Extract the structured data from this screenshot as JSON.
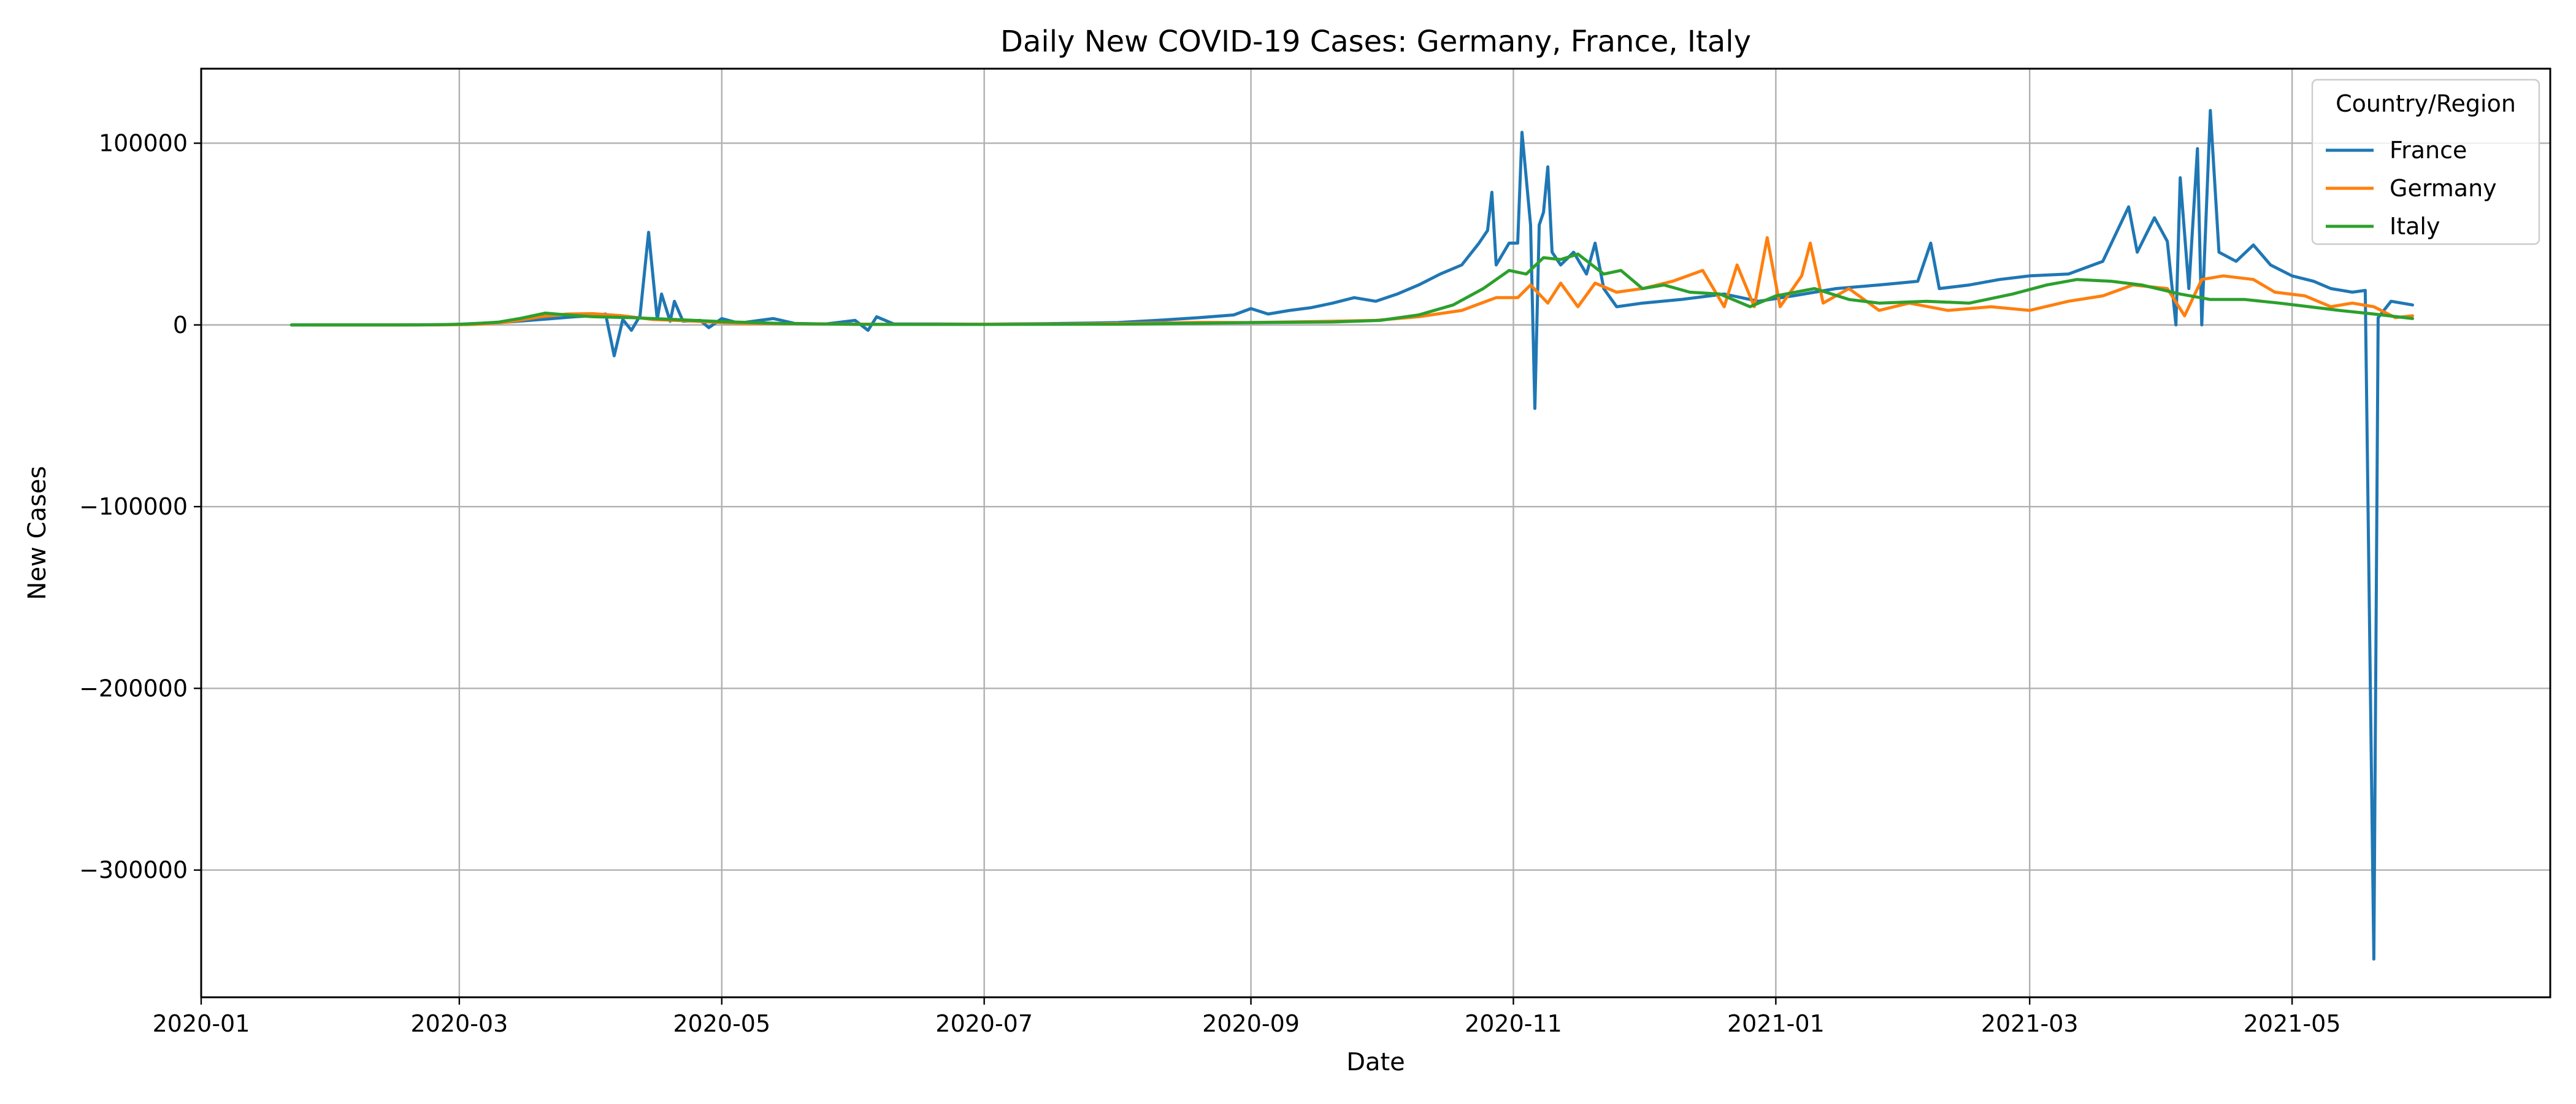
{
  "chart_data": {
    "type": "line",
    "title": "Daily New COVID-19 Cases: Germany, France, Italy",
    "xlabel": "Date",
    "ylabel": "New Cases",
    "x_axis_type": "date",
    "xlim": [
      "2020-01-01",
      "2021-06-30"
    ],
    "ylim": [
      -370000,
      141000
    ],
    "grid": true,
    "legend": {
      "title": "Country/Region",
      "placement": "top-right"
    },
    "x_ticks": [
      "2020-01",
      "2020-03",
      "2020-05",
      "2020-07",
      "2020-09",
      "2020-11",
      "2021-01",
      "2021-03",
      "2021-05"
    ],
    "y_ticks": [
      100000,
      0,
      -100000,
      -200000,
      -300000
    ],
    "y_tick_labels": [
      "100000",
      "0",
      "−100000",
      "−200000",
      "−300000"
    ],
    "series": [
      {
        "name": "France",
        "color": "#1f77b4",
        "points": [
          [
            "2020-01-22",
            0
          ],
          [
            "2020-02-15",
            0
          ],
          [
            "2020-02-28",
            200
          ],
          [
            "2020-03-05",
            800
          ],
          [
            "2020-03-12",
            1500
          ],
          [
            "2020-03-20",
            3000
          ],
          [
            "2020-03-28",
            4500
          ],
          [
            "2020-04-01",
            5000
          ],
          [
            "2020-04-04",
            6000
          ],
          [
            "2020-04-06",
            -17000
          ],
          [
            "2020-04-08",
            3000
          ],
          [
            "2020-04-10",
            -3000
          ],
          [
            "2020-04-12",
            5000
          ],
          [
            "2020-04-14",
            51000
          ],
          [
            "2020-04-16",
            3000
          ],
          [
            "2020-04-17",
            17000
          ],
          [
            "2020-04-19",
            2000
          ],
          [
            "2020-04-20",
            13000
          ],
          [
            "2020-04-22",
            2000
          ],
          [
            "2020-04-26",
            2500
          ],
          [
            "2020-04-28",
            -1500
          ],
          [
            "2020-05-01",
            3500
          ],
          [
            "2020-05-05",
            1000
          ],
          [
            "2020-05-13",
            3500
          ],
          [
            "2020-05-18",
            800
          ],
          [
            "2020-05-25",
            500
          ],
          [
            "2020-06-01",
            2500
          ],
          [
            "2020-06-04",
            -3000
          ],
          [
            "2020-06-06",
            4500
          ],
          [
            "2020-06-10",
            500
          ],
          [
            "2020-06-20",
            500
          ],
          [
            "2020-07-01",
            400
          ],
          [
            "2020-07-15",
            700
          ],
          [
            "2020-07-25",
            1000
          ],
          [
            "2020-08-01",
            1300
          ],
          [
            "2020-08-10",
            2500
          ],
          [
            "2020-08-20",
            4000
          ],
          [
            "2020-08-28",
            5500
          ],
          [
            "2020-09-01",
            9000
          ],
          [
            "2020-09-05",
            6000
          ],
          [
            "2020-09-10",
            8000
          ],
          [
            "2020-09-15",
            9500
          ],
          [
            "2020-09-20",
            12000
          ],
          [
            "2020-09-25",
            15000
          ],
          [
            "2020-09-30",
            13000
          ],
          [
            "2020-10-05",
            17000
          ],
          [
            "2020-10-10",
            22000
          ],
          [
            "2020-10-15",
            28000
          ],
          [
            "2020-10-20",
            33000
          ],
          [
            "2020-10-24",
            45000
          ],
          [
            "2020-10-26",
            52000
          ],
          [
            "2020-10-27",
            73000
          ],
          [
            "2020-10-28",
            33000
          ],
          [
            "2020-10-31",
            45000
          ],
          [
            "2020-11-02",
            45000
          ],
          [
            "2020-11-03",
            106000
          ],
          [
            "2020-11-05",
            55000
          ],
          [
            "2020-11-06",
            -46000
          ],
          [
            "2020-11-07",
            55000
          ],
          [
            "2020-11-08",
            62000
          ],
          [
            "2020-11-09",
            87000
          ],
          [
            "2020-11-10",
            40000
          ],
          [
            "2020-11-12",
            33000
          ],
          [
            "2020-11-15",
            40000
          ],
          [
            "2020-11-18",
            28000
          ],
          [
            "2020-11-20",
            45000
          ],
          [
            "2020-11-22",
            20000
          ],
          [
            "2020-11-25",
            10000
          ],
          [
            "2020-12-01",
            12000
          ],
          [
            "2020-12-10",
            14000
          ],
          [
            "2020-12-20",
            17000
          ],
          [
            "2020-12-28",
            13000
          ],
          [
            "2021-01-05",
            16000
          ],
          [
            "2021-01-15",
            20000
          ],
          [
            "2021-01-25",
            22000
          ],
          [
            "2021-02-03",
            24000
          ],
          [
            "2021-02-06",
            45000
          ],
          [
            "2021-02-08",
            20000
          ],
          [
            "2021-02-15",
            22000
          ],
          [
            "2021-02-22",
            25000
          ],
          [
            "2021-03-01",
            27000
          ],
          [
            "2021-03-10",
            28000
          ],
          [
            "2021-03-18",
            35000
          ],
          [
            "2021-03-24",
            65000
          ],
          [
            "2021-03-26",
            40000
          ],
          [
            "2021-03-30",
            59000
          ],
          [
            "2021-04-02",
            46000
          ],
          [
            "2021-04-04",
            0
          ],
          [
            "2021-04-05",
            81000
          ],
          [
            "2021-04-07",
            20000
          ],
          [
            "2021-04-09",
            97000
          ],
          [
            "2021-04-10",
            0
          ],
          [
            "2021-04-12",
            118000
          ],
          [
            "2021-04-14",
            40000
          ],
          [
            "2021-04-18",
            35000
          ],
          [
            "2021-04-22",
            44000
          ],
          [
            "2021-04-26",
            33000
          ],
          [
            "2021-05-01",
            27000
          ],
          [
            "2021-05-06",
            24000
          ],
          [
            "2021-05-10",
            20000
          ],
          [
            "2021-05-15",
            18000
          ],
          [
            "2021-05-18",
            19000
          ],
          [
            "2021-05-20",
            -349000
          ],
          [
            "2021-05-21",
            4000
          ],
          [
            "2021-05-24",
            13000
          ],
          [
            "2021-05-29",
            11000
          ]
        ]
      },
      {
        "name": "Germany",
        "color": "#ff7f0e",
        "points": [
          [
            "2020-01-27",
            0
          ],
          [
            "2020-02-25",
            0
          ],
          [
            "2020-03-05",
            300
          ],
          [
            "2020-03-12",
            1500
          ],
          [
            "2020-03-20",
            4500
          ],
          [
            "2020-03-26",
            6000
          ],
          [
            "2020-04-01",
            6200
          ],
          [
            "2020-04-08",
            5000
          ],
          [
            "2020-04-15",
            3000
          ],
          [
            "2020-04-25",
            2000
          ],
          [
            "2020-05-05",
            900
          ],
          [
            "2020-05-20",
            600
          ],
          [
            "2020-06-10",
            300
          ],
          [
            "2020-07-01",
            400
          ],
          [
            "2020-07-20",
            500
          ],
          [
            "2020-08-05",
            900
          ],
          [
            "2020-08-20",
            1400
          ],
          [
            "2020-09-01",
            1300
          ],
          [
            "2020-09-15",
            1800
          ],
          [
            "2020-09-30",
            2500
          ],
          [
            "2020-10-10",
            4500
          ],
          [
            "2020-10-20",
            8000
          ],
          [
            "2020-10-28",
            15000
          ],
          [
            "2020-11-02",
            15000
          ],
          [
            "2020-11-05",
            22000
          ],
          [
            "2020-11-09",
            12000
          ],
          [
            "2020-11-12",
            23000
          ],
          [
            "2020-11-16",
            10000
          ],
          [
            "2020-11-20",
            23000
          ],
          [
            "2020-11-25",
            18000
          ],
          [
            "2020-12-01",
            20000
          ],
          [
            "2020-12-08",
            24000
          ],
          [
            "2020-12-15",
            30000
          ],
          [
            "2020-12-20",
            10000
          ],
          [
            "2020-12-23",
            33000
          ],
          [
            "2020-12-27",
            10000
          ],
          [
            "2020-12-30",
            48000
          ],
          [
            "2021-01-02",
            10000
          ],
          [
            "2021-01-07",
            27000
          ],
          [
            "2021-01-09",
            45000
          ],
          [
            "2021-01-12",
            12000
          ],
          [
            "2021-01-18",
            20000
          ],
          [
            "2021-01-25",
            8000
          ],
          [
            "2021-02-01",
            12000
          ],
          [
            "2021-02-10",
            8000
          ],
          [
            "2021-02-20",
            10000
          ],
          [
            "2021-03-01",
            8000
          ],
          [
            "2021-03-10",
            13000
          ],
          [
            "2021-03-18",
            16000
          ],
          [
            "2021-03-25",
            22000
          ],
          [
            "2021-04-02",
            20000
          ],
          [
            "2021-04-06",
            5000
          ],
          [
            "2021-04-10",
            25000
          ],
          [
            "2021-04-15",
            27000
          ],
          [
            "2021-04-22",
            25000
          ],
          [
            "2021-04-27",
            18000
          ],
          [
            "2021-05-04",
            16000
          ],
          [
            "2021-05-10",
            10000
          ],
          [
            "2021-05-15",
            12000
          ],
          [
            "2021-05-20",
            10000
          ],
          [
            "2021-05-25",
            4000
          ],
          [
            "2021-05-29",
            5000
          ]
        ]
      },
      {
        "name": "Italy",
        "color": "#2ca02c",
        "points": [
          [
            "2020-01-22",
            0
          ],
          [
            "2020-02-20",
            0
          ],
          [
            "2020-02-26",
            200
          ],
          [
            "2020-03-03",
            500
          ],
          [
            "2020-03-10",
            1500
          ],
          [
            "2020-03-15",
            3500
          ],
          [
            "2020-03-21",
            6500
          ],
          [
            "2020-03-26",
            5500
          ],
          [
            "2020-04-01",
            4500
          ],
          [
            "2020-04-10",
            4000
          ],
          [
            "2020-04-20",
            3000
          ],
          [
            "2020-05-01",
            1800
          ],
          [
            "2020-05-15",
            800
          ],
          [
            "2020-06-01",
            300
          ],
          [
            "2020-07-01",
            250
          ],
          [
            "2020-08-01",
            400
          ],
          [
            "2020-08-20",
            900
          ],
          [
            "2020-09-01",
            1300
          ],
          [
            "2020-09-20",
            1600
          ],
          [
            "2020-10-01",
            2500
          ],
          [
            "2020-10-10",
            5500
          ],
          [
            "2020-10-18",
            11000
          ],
          [
            "2020-10-25",
            20000
          ],
          [
            "2020-10-31",
            30000
          ],
          [
            "2020-11-04",
            28000
          ],
          [
            "2020-11-08",
            37000
          ],
          [
            "2020-11-12",
            36000
          ],
          [
            "2020-11-16",
            39000
          ],
          [
            "2020-11-22",
            28000
          ],
          [
            "2020-11-26",
            30000
          ],
          [
            "2020-12-01",
            20000
          ],
          [
            "2020-12-06",
            22000
          ],
          [
            "2020-12-12",
            18000
          ],
          [
            "2020-12-19",
            17000
          ],
          [
            "2020-12-26",
            10000
          ],
          [
            "2021-01-01",
            16000
          ],
          [
            "2021-01-10",
            20000
          ],
          [
            "2021-01-18",
            14000
          ],
          [
            "2021-01-25",
            12000
          ],
          [
            "2021-02-05",
            13000
          ],
          [
            "2021-02-15",
            12000
          ],
          [
            "2021-02-25",
            17000
          ],
          [
            "2021-03-05",
            22000
          ],
          [
            "2021-03-12",
            25000
          ],
          [
            "2021-03-20",
            24000
          ],
          [
            "2021-03-27",
            22000
          ],
          [
            "2021-04-05",
            17000
          ],
          [
            "2021-04-12",
            14000
          ],
          [
            "2021-04-20",
            14000
          ],
          [
            "2021-04-28",
            12000
          ],
          [
            "2021-05-05",
            10000
          ],
          [
            "2021-05-12",
            8000
          ],
          [
            "2021-05-20",
            6000
          ],
          [
            "2021-05-29",
            3500
          ]
        ]
      }
    ]
  }
}
